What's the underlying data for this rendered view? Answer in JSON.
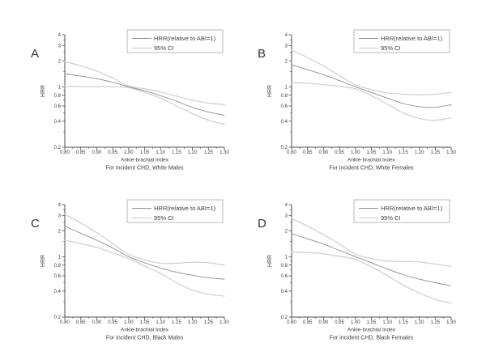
{
  "figure": {
    "background": "#ffffff",
    "legend": {
      "hrr_label": "HRR(relative to ABI=1)",
      "ci_label": "95% CI"
    },
    "colors": {
      "hrr_line": "#8f8f8f",
      "ci_line": "#d2d2d2",
      "axis": "#4d4d4d",
      "text": "#3c3c3c",
      "panel_letter": "#333333",
      "legend_border": "#a8a8a8",
      "legend_fill": "#ffffff"
    }
  },
  "chart_data": [
    {
      "type": "line",
      "panel": "A",
      "xlabel": "Ankle-brachial Index",
      "subtitle": "For incident CHD, White Males",
      "ylabel": "HRR",
      "yscale": "log",
      "ylim": [
        0.2,
        4
      ],
      "yticks": [
        4,
        3,
        2,
        1,
        0.8,
        0.6,
        0.4,
        0.2
      ],
      "x": [
        0.8,
        0.85,
        0.9,
        0.95,
        1.0,
        1.05,
        1.1,
        1.15,
        1.2,
        1.25,
        1.3
      ],
      "series": [
        {
          "name": "HRR(relative to ABI=1)",
          "values": [
            1.42,
            1.33,
            1.24,
            1.13,
            1.0,
            0.9,
            0.79,
            0.68,
            0.58,
            0.51,
            0.47
          ]
        },
        {
          "name": "95% CI upper",
          "values": [
            1.95,
            1.75,
            1.52,
            1.27,
            1.02,
            0.95,
            0.87,
            0.78,
            0.7,
            0.65,
            0.62
          ]
        },
        {
          "name": "95% CI lower",
          "values": [
            1.01,
            1.01,
            1.0,
            1.0,
            0.98,
            0.86,
            0.74,
            0.6,
            0.49,
            0.41,
            0.37
          ]
        }
      ]
    },
    {
      "type": "line",
      "panel": "B",
      "xlabel": "Ankle-brachial Index",
      "subtitle": "For incident CHD, White Females",
      "ylabel": "HRR",
      "yscale": "log",
      "ylim": [
        0.2,
        4
      ],
      "yticks": [
        4,
        3,
        2,
        1,
        0.8,
        0.6,
        0.4,
        0.2
      ],
      "x": [
        0.8,
        0.85,
        0.9,
        0.95,
        1.0,
        1.05,
        1.1,
        1.15,
        1.2,
        1.25,
        1.3
      ],
      "series": [
        {
          "name": "HRR(relative to ABI=1)",
          "values": [
            1.8,
            1.58,
            1.38,
            1.18,
            1.0,
            0.86,
            0.74,
            0.64,
            0.59,
            0.58,
            0.62
          ]
        },
        {
          "name": "95% CI upper",
          "values": [
            2.65,
            2.18,
            1.74,
            1.35,
            1.05,
            0.93,
            0.85,
            0.82,
            0.81,
            0.82,
            0.86
          ]
        },
        {
          "name": "95% CI lower",
          "values": [
            1.12,
            1.1,
            1.06,
            1.01,
            0.95,
            0.79,
            0.63,
            0.5,
            0.43,
            0.41,
            0.44
          ]
        }
      ]
    },
    {
      "type": "line",
      "panel": "C",
      "xlabel": "Ankle-brachial Index",
      "subtitle": "For incident CHD, Black Males",
      "ylabel": "HRR",
      "yscale": "log",
      "ylim": [
        0.2,
        4
      ],
      "yticks": [
        4,
        3,
        2,
        1,
        0.8,
        0.6,
        0.4,
        0.2
      ],
      "x": [
        0.8,
        0.85,
        0.9,
        0.95,
        1.0,
        1.05,
        1.1,
        1.15,
        1.2,
        1.25,
        1.3
      ],
      "series": [
        {
          "name": "HRR(relative to ABI=1)",
          "values": [
            2.25,
            1.87,
            1.55,
            1.26,
            1.0,
            0.85,
            0.74,
            0.66,
            0.61,
            0.57,
            0.55
          ]
        },
        {
          "name": "95% CI upper",
          "values": [
            3.1,
            2.45,
            1.9,
            1.42,
            1.06,
            0.92,
            0.84,
            0.84,
            0.86,
            0.85,
            0.8
          ]
        },
        {
          "name": "95% CI lower",
          "values": [
            1.55,
            1.42,
            1.28,
            1.11,
            0.95,
            0.78,
            0.64,
            0.5,
            0.41,
            0.37,
            0.35
          ]
        }
      ]
    },
    {
      "type": "line",
      "panel": "D",
      "xlabel": "Ankle-brachial Index",
      "subtitle": "For incident CHD, Black Females",
      "ylabel": "HRR",
      "yscale": "log",
      "ylim": [
        0.2,
        4
      ],
      "yticks": [
        4,
        3,
        2,
        1,
        0.8,
        0.6,
        0.4,
        0.2
      ],
      "x": [
        0.8,
        0.85,
        0.9,
        0.95,
        1.0,
        1.05,
        1.1,
        1.15,
        1.2,
        1.25,
        1.3
      ],
      "series": [
        {
          "name": "HRR(relative to ABI=1)",
          "values": [
            1.85,
            1.61,
            1.4,
            1.18,
            1.0,
            0.85,
            0.72,
            0.62,
            0.55,
            0.5,
            0.46
          ]
        },
        {
          "name": "95% CI upper",
          "values": [
            2.75,
            2.25,
            1.8,
            1.4,
            1.07,
            0.95,
            0.89,
            0.88,
            0.87,
            0.82,
            0.77
          ]
        },
        {
          "name": "95% CI lower",
          "values": [
            1.13,
            1.12,
            1.08,
            1.01,
            0.93,
            0.76,
            0.6,
            0.47,
            0.38,
            0.32,
            0.29
          ]
        }
      ]
    }
  ]
}
